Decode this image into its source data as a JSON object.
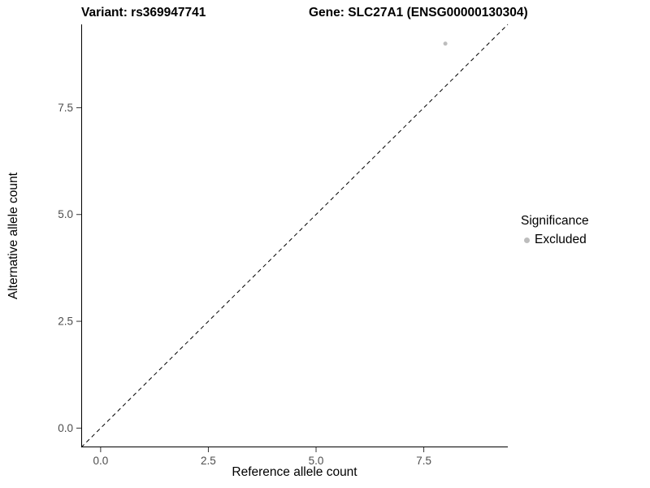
{
  "chart_data": {
    "type": "scatter",
    "titles": {
      "left": "Variant: rs369947741",
      "right": "Gene: SLC27A1 (ENSG00000130304)"
    },
    "xlabel": "Reference allele count",
    "ylabel": "Alternative allele count",
    "xlim": [
      -0.45,
      9.45
    ],
    "ylim": [
      -0.45,
      9.45
    ],
    "xticks": {
      "values": [
        0,
        2.5,
        5,
        7.5
      ],
      "labels": [
        "0.0",
        "2.5",
        "5.0",
        "7.5"
      ]
    },
    "yticks": {
      "values": [
        0,
        2.5,
        5,
        7.5
      ],
      "labels": [
        "0.0",
        "2.5",
        "5.0",
        "7.5"
      ]
    },
    "grid": false,
    "axis_lines": [
      "left",
      "bottom"
    ],
    "identity_line": {
      "style": "dashed",
      "color": "#000000",
      "from": [
        -0.45,
        -0.45
      ],
      "to": [
        9.45,
        9.45
      ]
    },
    "series": [
      {
        "name": "Excluded",
        "color": "#bdbdbd",
        "point_size": 2.5,
        "points": [
          {
            "x": 8,
            "y": 9
          }
        ]
      }
    ],
    "legend": {
      "title": "Significance",
      "position": "right",
      "items": [
        {
          "label": "Excluded",
          "color": "#bdbdbd"
        }
      ]
    },
    "colors": {
      "axis_text": "#4d4d4d",
      "axis_line": "#000000",
      "background": "#ffffff"
    }
  }
}
